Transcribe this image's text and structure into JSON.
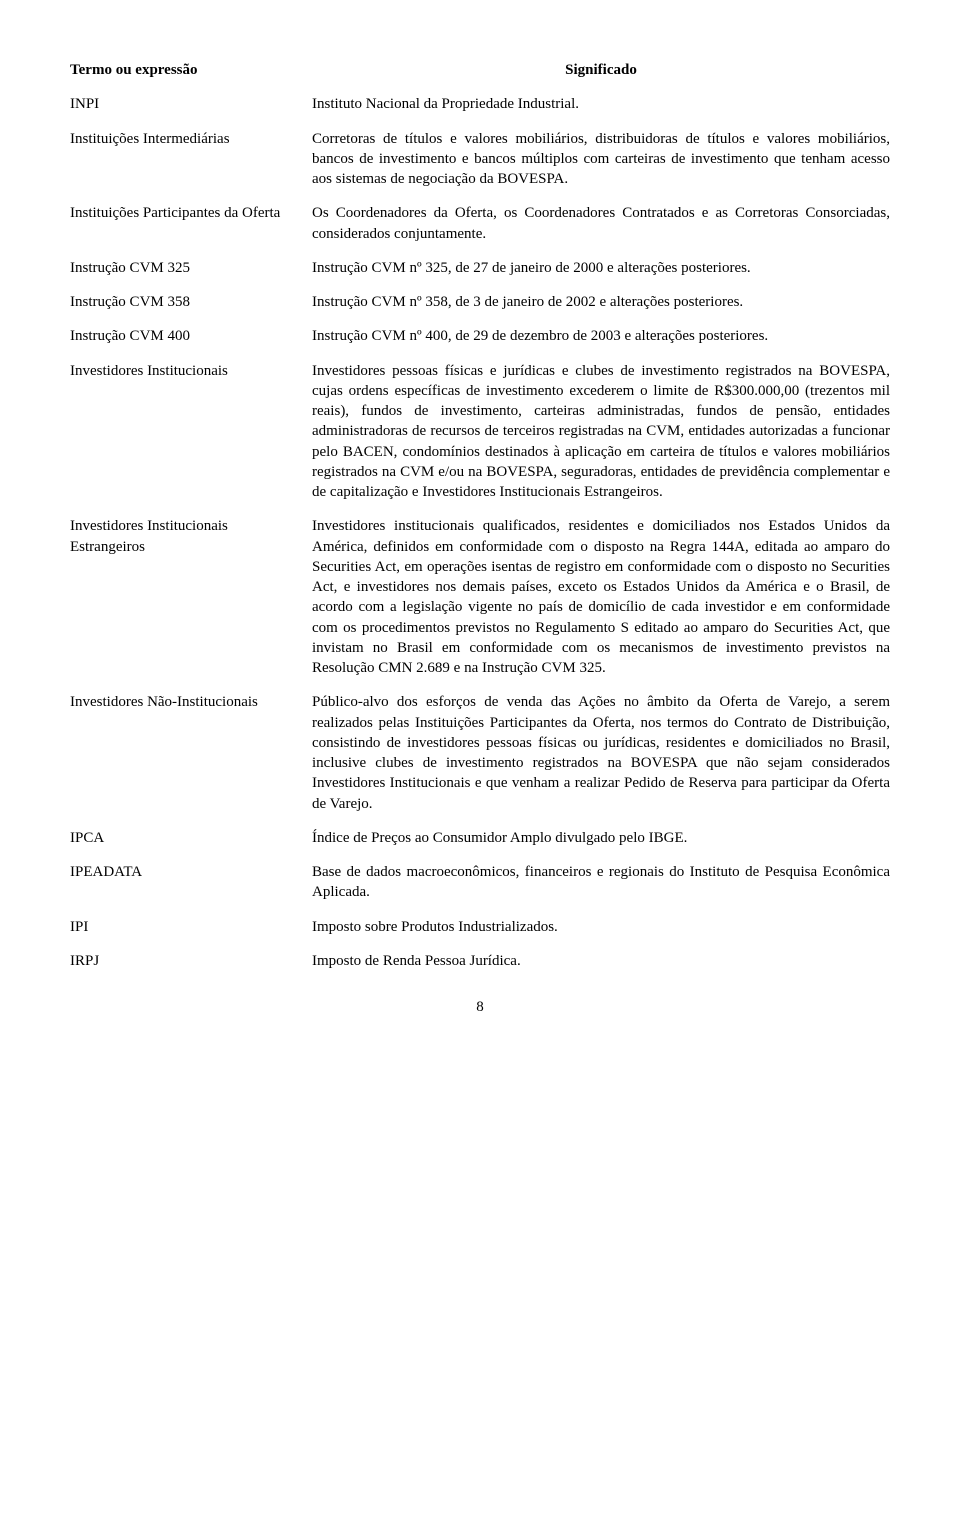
{
  "header": {
    "left": "Termo ou expressão",
    "right": "Significado"
  },
  "rows": [
    {
      "term": "INPI",
      "def": "Instituto Nacional da Propriedade Industrial."
    },
    {
      "term": "Instituições Intermediárias",
      "def": "Corretoras de títulos e valores mobiliários, distribuidoras de títulos e valores mobiliários, bancos de investimento e bancos múltiplos com carteiras de investimento que tenham acesso aos sistemas de negociação da BOVESPA."
    },
    {
      "term": "Instituições Participantes da Oferta",
      "def": "Os Coordenadores da Oferta, os Coordenadores Contratados e as Corretoras Consorciadas, considerados conjuntamente."
    },
    {
      "term": "Instrução CVM 325",
      "def": "Instrução CVM nº 325, de 27 de janeiro de 2000 e alterações posteriores."
    },
    {
      "term": "Instrução CVM 358",
      "def": "Instrução CVM nº 358, de 3 de janeiro de 2002 e alterações posteriores."
    },
    {
      "term": "Instrução CVM 400",
      "def": "Instrução CVM nº 400, de 29 de dezembro de 2003 e alterações posteriores."
    },
    {
      "term": "Investidores Institucionais",
      "def": "Investidores pessoas físicas e jurídicas e clubes de investimento registrados na BOVESPA, cujas ordens específicas de investimento excederem o limite de R$300.000,00 (trezentos mil reais), fundos de investimento, carteiras administradas, fundos de pensão, entidades administradoras de recursos de terceiros registradas na CVM, entidades autorizadas a funcionar pelo BACEN, condomínios destinados à aplicação em carteira de títulos e valores mobiliários registrados na CVM e/ou na BOVESPA, seguradoras, entidades de previdência complementar e de capitalização e Investidores Institucionais Estrangeiros."
    },
    {
      "term": "Investidores Institucionais Estrangeiros",
      "def": "Investidores institucionais qualificados, residentes e domiciliados nos Estados Unidos da América, definidos em conformidade com o disposto na Regra 144A, editada ao amparo do Securities Act, em operações isentas de registro em conformidade com o disposto no Securities Act, e investidores nos demais países, exceto os Estados Unidos da América e o Brasil, de acordo com a legislação vigente no país de domicílio de cada investidor e em conformidade com os procedimentos previstos no Regulamento S editado ao amparo do Securities Act, que invistam no Brasil em conformidade com os mecanismos de investimento previstos na Resolução CMN 2.689 e na Instrução CVM 325."
    },
    {
      "term": "Investidores Não-Institucionais",
      "def": "Público-alvo dos esforços de venda das Ações no âmbito da Oferta de Varejo, a serem realizados pelas Instituições Participantes da Oferta, nos termos do Contrato de Distribuição, consistindo de investidores pessoas físicas ou jurídicas, residentes e domiciliados no Brasil, inclusive clubes de investimento registrados na BOVESPA que não sejam considerados Investidores Institucionais e que venham a realizar Pedido de Reserva para participar da Oferta de Varejo."
    },
    {
      "term": "IPCA",
      "def": "Índice de Preços ao Consumidor Amplo divulgado pelo IBGE."
    },
    {
      "term": "IPEADATA",
      "def": "Base de dados macroeconômicos, financeiros e regionais do Instituto de Pesquisa Econômica Aplicada."
    },
    {
      "term": "IPI",
      "def": "Imposto sobre Produtos Industrializados."
    },
    {
      "term": "IRPJ",
      "def": "Imposto de Renda Pessoa Jurídica."
    }
  ],
  "page_number": "8"
}
